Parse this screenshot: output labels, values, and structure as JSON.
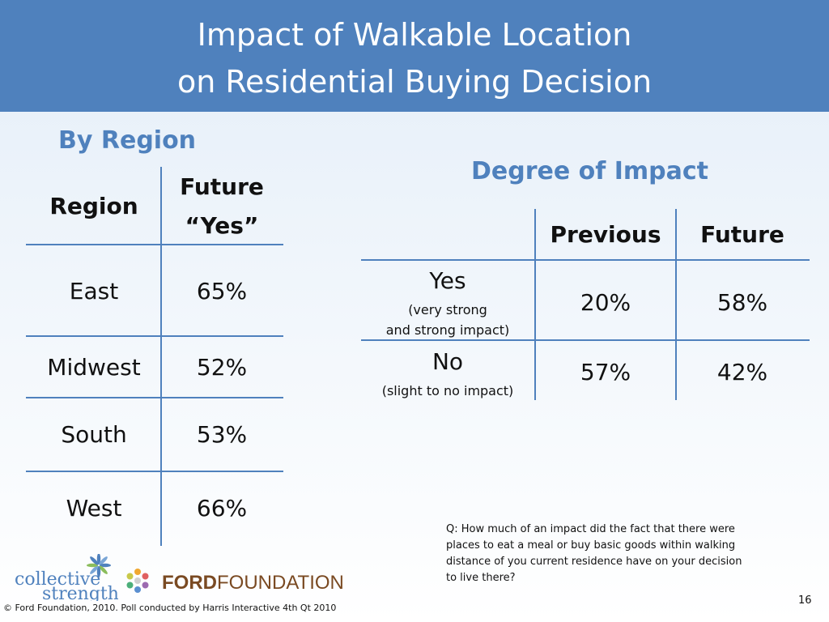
{
  "title": {
    "line1": "Impact of Walkable Location",
    "line2": "on Residential Buying Decision"
  },
  "by_region": {
    "heading": "By Region",
    "header_region": "Region",
    "header_future_line1": "Future",
    "header_future_line2": "“Yes”",
    "rows": [
      {
        "region": "East",
        "value": "65%"
      },
      {
        "region": "Midwest",
        "value": "52%"
      },
      {
        "region": "South",
        "value": "53%"
      },
      {
        "region": "West",
        "value": "66%"
      }
    ]
  },
  "degree": {
    "heading": "Degree of Impact",
    "header_previous": "Previous",
    "header_future": "Future",
    "rows": [
      {
        "label": "Yes",
        "sub1": "(very strong",
        "sub2": "and strong impact)",
        "previous": "20%",
        "future": "58%"
      },
      {
        "label": "No",
        "sub1": "(slight to no impact)",
        "sub2": "",
        "previous": "57%",
        "future": "42%"
      }
    ]
  },
  "question": "Q:  How much of an impact did the fact that there were places to eat a meal or buy basic goods within walking distance of you current residence have on your decision to live there?",
  "logos": {
    "collective_line1": "collective",
    "collective_line2": "strength",
    "ford_bold": "FORD",
    "ford_light": "FOUNDATION"
  },
  "footer": "© Ford Foundation, 2010. Poll conducted by Harris Interactive 4th Qt 2010",
  "page_number": "16",
  "colors": {
    "accent": "#4f81bd",
    "ford_brown": "#7a4a22"
  }
}
